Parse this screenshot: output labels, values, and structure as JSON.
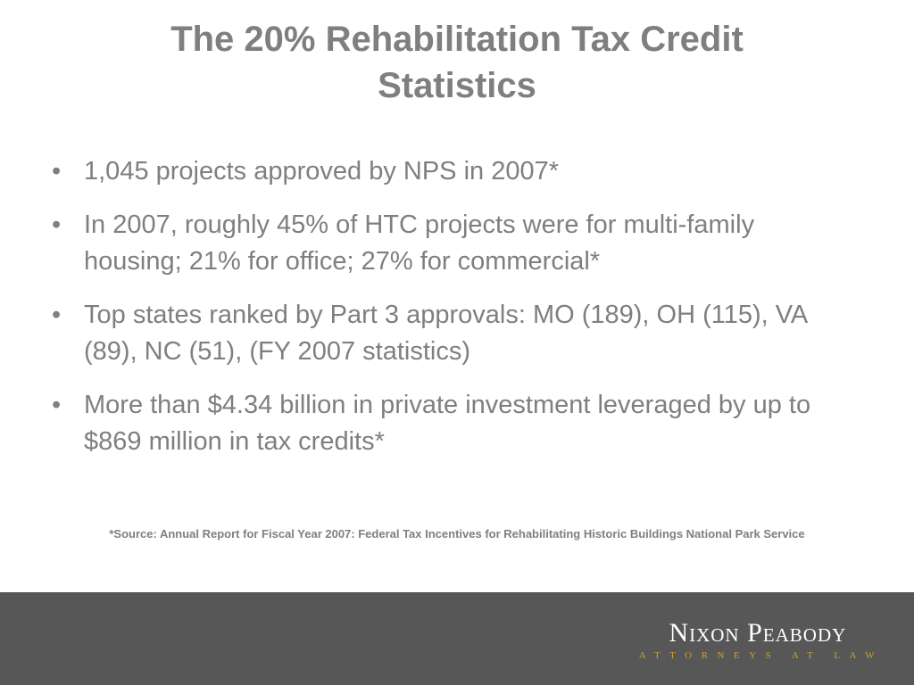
{
  "slide": {
    "title_line1": "The 20% Rehabilitation Tax Credit",
    "title_line2": "Statistics",
    "bullets": [
      "1,045 projects approved by NPS in 2007*",
      "In 2007, roughly 45% of HTC projects were for multi-family housing; 21% for office; 27% for commercial*",
      "Top states ranked by Part 3 approvals: MO (189), OH (115), VA (89), NC (51), (FY 2007 statistics)",
      "More than $4.34 billion in private investment leveraged by up to $869 million in tax credits*"
    ],
    "bullet_symbol": "•",
    "source": "*Source: Annual Report for Fiscal Year 2007: Federal Tax Incentives for Rehabilitating Historic Buildings National Park Service"
  },
  "footer": {
    "logo_name": "Nixon Peabody",
    "logo_tagline": "ATTORNEYS AT LAW"
  },
  "colors": {
    "text_gray": "#7f7f7f",
    "footer_bg": "#575757",
    "logo_gold": "#c8a030"
  }
}
